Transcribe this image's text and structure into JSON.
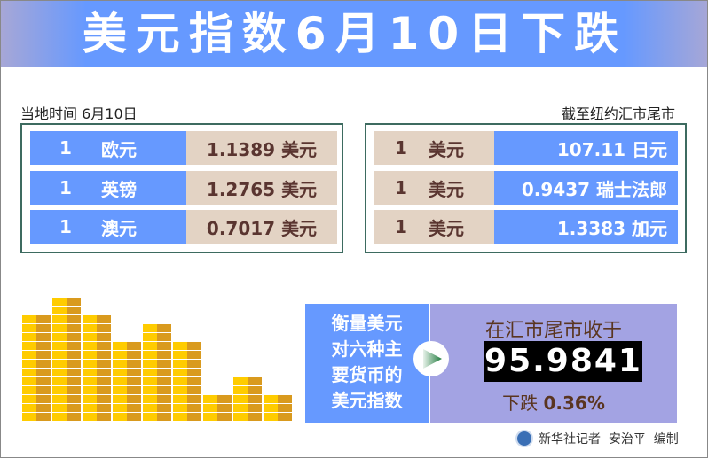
{
  "title": "美元指数6月10日下跌",
  "left_panel": {
    "caption": "当地时间 6月10日",
    "rows": [
      {
        "amount": "1",
        "currency": "欧元",
        "value": "1.1389 美元"
      },
      {
        "amount": "1",
        "currency": "英镑",
        "value": "1.2765 美元"
      },
      {
        "amount": "1",
        "currency": "澳元",
        "value": "0.7017 美元"
      }
    ]
  },
  "right_panel": {
    "caption": "截至纽约汇市尾市",
    "rows": [
      {
        "amount": "1",
        "currency": "美元",
        "value": "107.11 日元"
      },
      {
        "amount": "1",
        "currency": "美元",
        "value": "0.9437 瑞士法郎"
      },
      {
        "amount": "1",
        "currency": "美元",
        "value": "1.3383 加元"
      }
    ]
  },
  "index_panel": {
    "description": [
      "衡量美元",
      "对六种主",
      "要货币的",
      "美元指数"
    ],
    "closing_label": "在汇市尾市收于",
    "index_value": "95.9841",
    "change_label": "下跌",
    "change_value": "0.36%"
  },
  "footer": {
    "credit": "新华社记者  安治平  编制"
  },
  "colors": {
    "blue": "#6699ff",
    "beige": "#e3d3c4",
    "lavender": "#a3a3e3",
    "gold": "#ffcc00"
  }
}
